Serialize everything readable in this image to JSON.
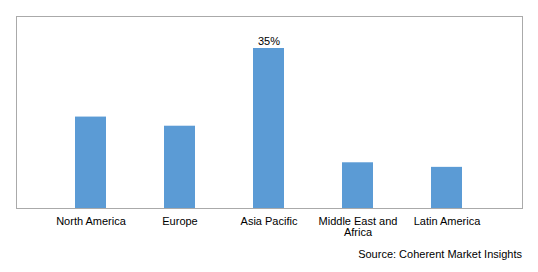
{
  "chart_data": {
    "type": "bar",
    "categories": [
      "North America",
      "Europe",
      "Asia Pacific",
      "Middle East and\nAfrica",
      "Latin America"
    ],
    "values": [
      20,
      18,
      35,
      10,
      9
    ],
    "color": "#5B9BD5",
    "ylim": [
      0,
      42
    ],
    "yticks": [],
    "tick_labels": "x",
    "grid": false,
    "annotations": [
      {
        "category": "Asia Pacific",
        "text": "35%"
      }
    ],
    "caption": "Source: Coherent Market Insights"
  }
}
